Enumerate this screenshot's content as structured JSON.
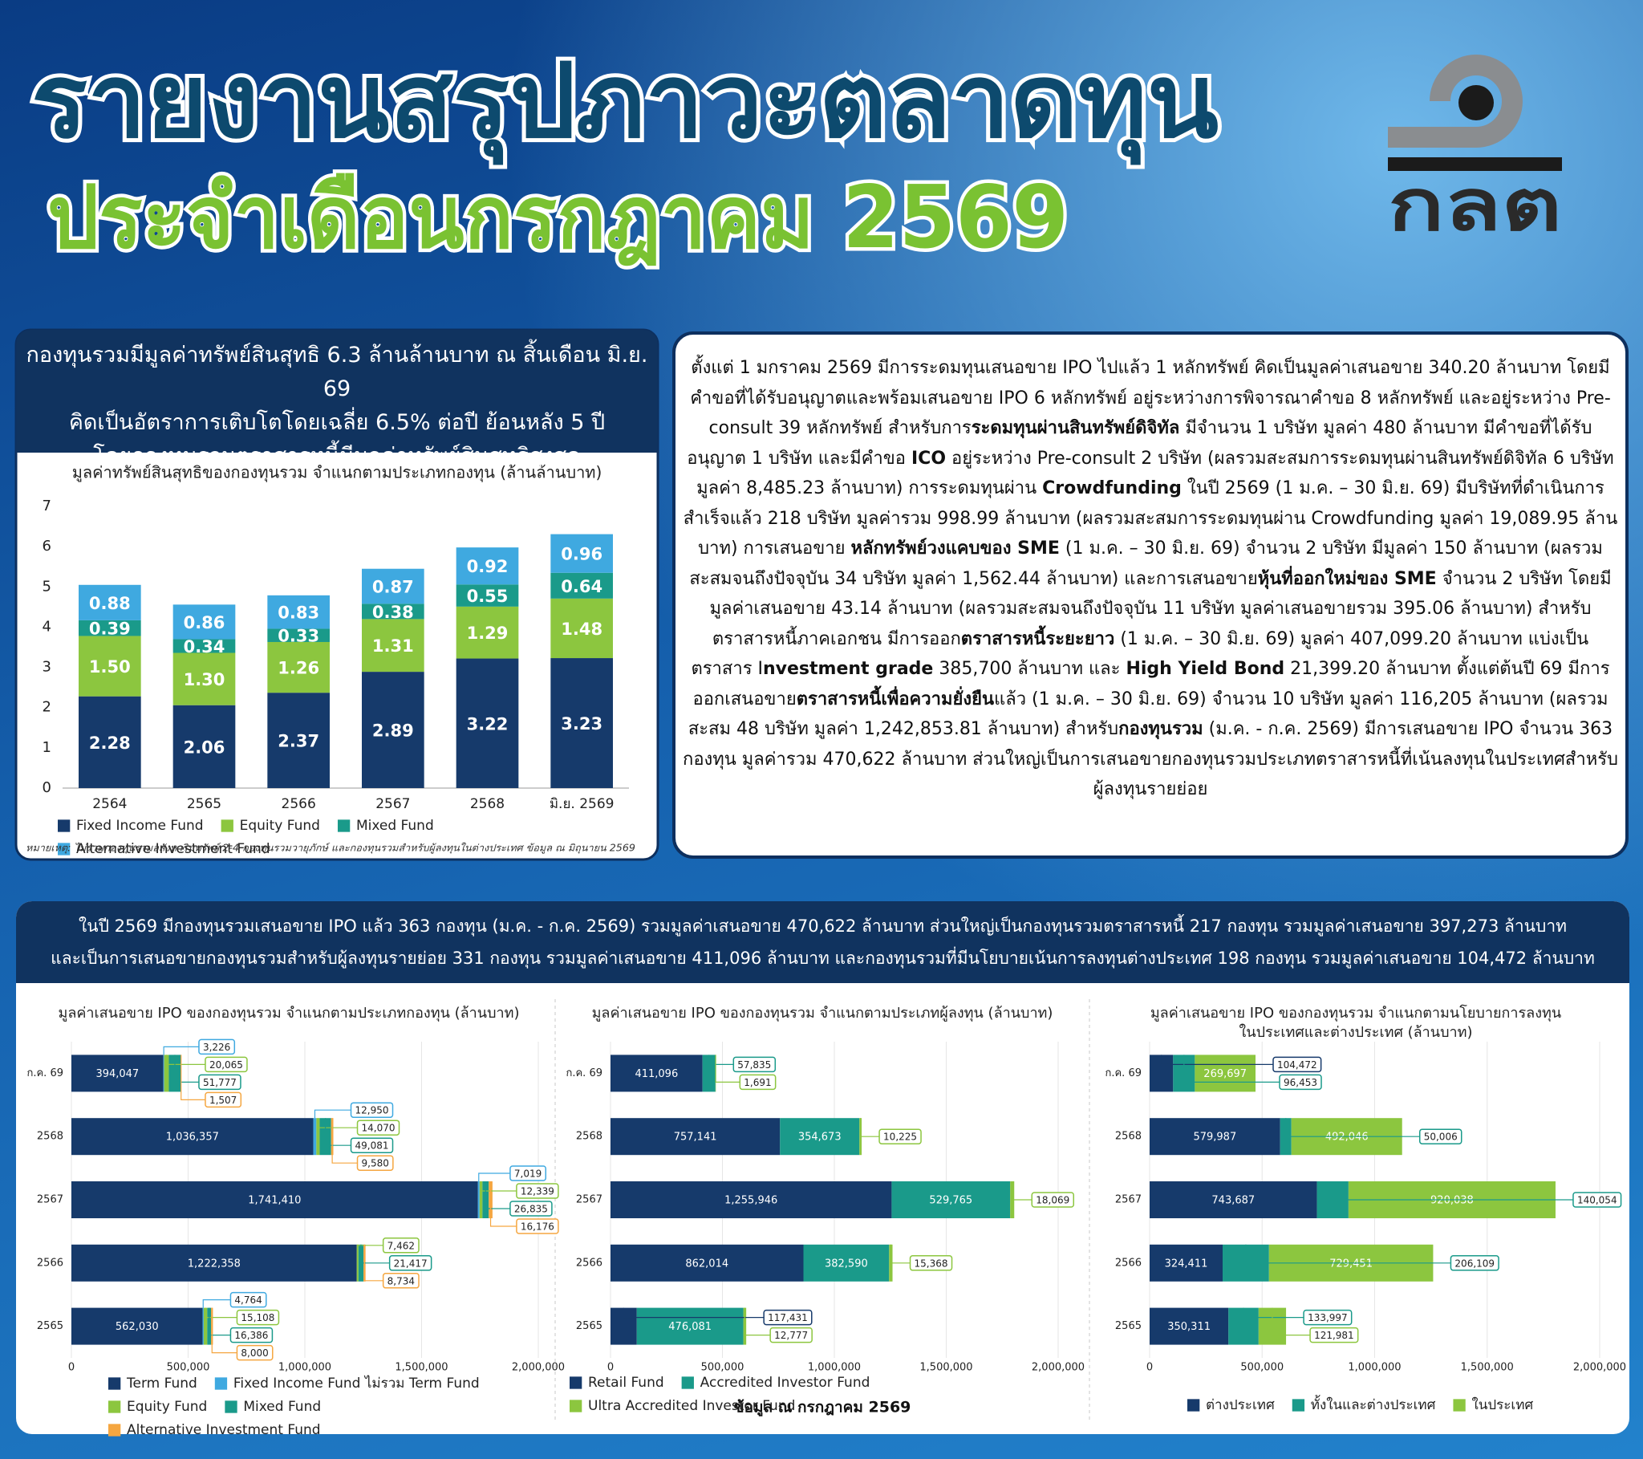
{
  "header": {
    "title": [
      "รายงานสรุปภาวะตลาดทุน",
      "ประจำเดือนกรกฎาคม 2569"
    ],
    "logo": "กลต"
  },
  "nav_panel": {
    "heading": [
      "กองทุนรวมมีมูลค่าทรัพย์สินสุทธิ 6.3 ล้านล้านบาท ณ สิ้นเดือน มิ.ย. 69",
      "คิดเป็นอัตราการเติบโตโดยเฉลี่ย 6.5% ต่อปี ย้อนหลัง 5 ปี",
      "โดยกองทุนรวมตราสารหนี้มีมูลค่าทรัพย์สินสุทธิสูงสุด"
    ]
  },
  "summary": {
    "paragraph": [
      "ตั้งแต่ 1 มกราคม 2569 มีการระดมทุนเสนอขาย IPO ไปแล้ว 1 หลักทรัพย์ คิดเป็นมูลค่าเสนอขาย 340.20 ล้านบาท โดยมีคำขอที่ได้รับอนุญาตและพร้อมเสนอขาย IPO 6 หลักทรัพย์ อยู่ระหว่างการพิจารณาคำขอ 8 หลักทรัพย์ และอยู่ระหว่าง Pre-consult 39 หลักทรัพย์ สำหรับการ",
      {
        "text": "ระดมทุนผ่านสินทรัพย์ดิจิทัล",
        "bold": true
      },
      " มีจำนวน 1 บริษัท มูลค่า 480 ล้านบาท  มีคำขอที่ได้รับอนุญาต 1 บริษัท  และมีคำขอ ",
      {
        "text": "ICO",
        "bold": true
      },
      " อยู่ระหว่าง Pre-consult 2 บริษัท (ผลรวมสะสมการระดมทุนผ่านสินทรัพย์ดิจิทัล 6 บริษัทมูลค่า 8,485.23 ล้านบาท) การระดมทุนผ่าน ",
      {
        "text": "Crowdfunding",
        "bold": true
      },
      " ในปี 2569 (1 ม.ค. – 30 มิ.ย. 69) มีบริษัทที่ดำเนินการสำเร็จแล้ว 218 บริษัท มูลค่ารวม 998.99 ล้านบาท (ผลรวมสะสมการระดมทุนผ่าน Crowdfunding มูลค่า 19,089.95 ล้านบาท) การเสนอขาย ",
      {
        "text": "หลักทรัพย์วงแคบของ SME",
        "bold": true
      },
      " (1 ม.ค. – 30 มิ.ย. 69) จำนวน 2 บริษัท มีมูลค่า 150 ล้านบาท (ผลรวมสะสมจนถึงปัจจุบัน 34 บริษัท มูลค่า 1,562.44 ล้านบาท) และการเสนอขาย",
      {
        "text": "หุ้นที่ออกใหม่ของ SME",
        "bold": true
      },
      " จำนวน 2 บริษัท โดยมีมูลค่าเสนอขาย 43.14 ล้านบาท (ผลรวมสะสมจนถึงปัจจุบัน 11 บริษัท มูลค่าเสนอขายรวม 395.06 ล้านบาท) สำหรับตราสารหนี้ภาคเอกชน มีการออก",
      {
        "text": "ตราสารหนี้ระยะยาว",
        "bold": true
      },
      " (1 ม.ค. – 30 มิ.ย. 69) มูลค่า 407,099.20 ล้านบาท แบ่งเป็นตราสาร I",
      {
        "text": "nvestment grade",
        "bold": true
      },
      " 385,700 ล้านบาท  และ ",
      {
        "text": "High Yield Bond",
        "bold": true
      },
      " 21,399.20 ล้านบาท ตั้งแต่ต้นปี 69  มีการออกเสนอขาย",
      {
        "text": "ตราสารหนี้เพื่อความยั่งยืน",
        "bold": true
      },
      "แล้ว (1 ม.ค. – 30 มิ.ย. 69) จำนวน 10 บริษัท มูลค่า 116,205 ล้านบาท (ผลรวมสะสม 48 บริษัท มูลค่า 1,242,853.81 ล้านบาท) สำหรับ",
      {
        "text": "กองทุนรวม",
        "bold": true
      },
      " (ม.ค. - ก.ค. 2569)  มีการเสนอขาย IPO จำนวน 363 กองทุน มูลค่ารวม 470,622 ล้านบาท ส่วนใหญ่เป็นการเสนอขายกองทุนรวมประเภทตราสารหนี้ที่เน้นลงทุนในประเทศสำหรับผู้ลงทุนรายย่อย"
    ]
  },
  "ipo_panel": {
    "heading": [
      "ในปี 2569 มีกองทุนรวมเสนอขาย IPO แล้ว 363 กองทุน (ม.ค. - ก.ค. 2569) รวมมูลค่าเสนอขาย 470,622 ล้านบาท ส่วนใหญ่เป็นกองทุนรวมตราสารหนี้ 217 กองทุน รวมมูลค่าเสนอขาย 397,273 ล้านบาท",
      "และเป็นการเสนอขายกองทุนรวมสำหรับผู้ลงทุนรายย่อย 331 กองทุน รวมมูลค่าเสนอขาย 411,096 ล้านบาท และกองทุนรวมที่มีนโยบายเน้นการลงทุนต่างประเทศ 198 กองทุน รวมมูลค่าเสนอขาย 104,472 ล้านบาท"
    ],
    "footnote": "ข้อมูล ณ กรกฎาคม 2569"
  },
  "chart_data": [
    {
      "type": "bar",
      "stacked": true,
      "grid": false,
      "title": "มูลค่าทรัพย์สินสุทธิของกองทุนรวม จำแนกตามประเภทกองทุน (ล้านล้านบาท)",
      "categories": [
        "2564",
        "2565",
        "2566",
        "2567",
        "2568",
        "มิ.ย. 2569"
      ],
      "series": [
        {
          "name": "Fixed Income Fund",
          "color": "#163a6b",
          "values": [
            2.28,
            2.06,
            2.37,
            2.89,
            3.22,
            3.23
          ]
        },
        {
          "name": "Equity Fund",
          "color": "#8cc63f",
          "values": [
            1.5,
            1.3,
            1.26,
            1.31,
            1.29,
            1.48
          ],
          "value_labels": [
            "1.50",
            "1.30",
            "1.26",
            "1.31",
            "1.29",
            "1.48"
          ]
        },
        {
          "name": "Mixed Fund",
          "color": "#1a9a8a",
          "values": [
            0.39,
            0.34,
            0.33,
            0.38,
            0.55,
            0.64
          ]
        },
        {
          "name": "Alternative Investment Fund",
          "color": "#3fa9e0",
          "values": [
            0.88,
            0.86,
            0.83,
            0.87,
            0.92,
            0.96
          ]
        }
      ],
      "ylim": [
        0,
        7
      ],
      "yticks": [
        0,
        1,
        2,
        3,
        4,
        5,
        6,
        7
      ],
      "note": "หมายเหตุ: ไม่รวมกองทุนรวมอสังหาริมทรัพย์ 2-4 กองทุนรวมวายุภักษ์ และกองทุนรวมสำหรับผู้ลงทุนในต่างประเทศ ข้อมูล ณ มิถุนายน 2569"
    },
    {
      "type": "bar",
      "orientation": "horizontal",
      "stacked": true,
      "grid": true,
      "title": "มูลค่าเสนอขาย IPO ของกองทุนรวม จำแนกตามประเภทกองทุน (ล้านบาท)",
      "categories": [
        "ก.ค. 69",
        "2568",
        "2567",
        "2566",
        "2565"
      ],
      "series": [
        {
          "name": "Term Fund",
          "color": "#163a6b",
          "values": [
            394047,
            1036357,
            1741410,
            1222358,
            562030
          ],
          "value_labels": [
            "394,047",
            "1,036,357",
            "1,741,410",
            "1,222,358",
            "562,030"
          ]
        },
        {
          "name": "Fixed Income Fund ไม่รวม Term Fund",
          "color": "#3fa9e0",
          "values": [
            3226,
            12950,
            7019,
            null,
            4764
          ],
          "value_labels": [
            "3,226",
            "12,950",
            "7,019",
            null,
            "4,764"
          ]
        },
        {
          "name": "Equity Fund",
          "color": "#8cc63f",
          "values": [
            20065,
            14070,
            12339,
            7462,
            15108
          ],
          "value_labels": [
            "20,065",
            "14,070",
            "12,339",
            "7,462",
            "15,108"
          ]
        },
        {
          "name": "Mixed Fund",
          "color": "#1a9a8a",
          "values": [
            51777,
            49081,
            26835,
            21417,
            16386
          ],
          "value_labels": [
            "51,777",
            "49,081",
            "26,835",
            "21,417",
            "16,386"
          ]
        },
        {
          "name": "Alternative Investment Fund",
          "color": "#f5a640",
          "values": [
            1507,
            9580,
            16176,
            8734,
            8000
          ],
          "value_labels": [
            "1,507",
            "9,580",
            "16,176",
            "8,734",
            "8,000"
          ]
        }
      ],
      "xlim": [
        0,
        2000000
      ],
      "xticks": [
        0,
        {
          "value": 500000,
          "label": "500,000"
        },
        {
          "value": 1000000,
          "label": "1,000,000"
        },
        {
          "value": 1500000,
          "label": "1,500,000"
        },
        {
          "value": 2000000,
          "label": "2,000,000"
        }
      ]
    },
    {
      "type": "bar",
      "orientation": "horizontal",
      "stacked": true,
      "grid": true,
      "title": "มูลค่าเสนอขาย IPO ของกองทุนรวม จำแนกตามประเภทผู้ลงทุน (ล้านบาท)",
      "categories": [
        "ก.ค. 69",
        "2568",
        "2567",
        "2566",
        "2565"
      ],
      "series": [
        {
          "name": "Retail Fund",
          "color": "#163a6b",
          "values": [
            411096,
            757141,
            1255946,
            862014,
            117431
          ],
          "value_labels": [
            "411,096",
            "757,141",
            "1,255,946",
            "862,014",
            "117,431"
          ]
        },
        {
          "name": "Accredited Investor Fund",
          "color": "#1a9a8a",
          "values": [
            57835,
            354673,
            529765,
            382590,
            476081
          ],
          "value_labels": [
            "57,835",
            "354,673",
            "529,765",
            "382,590",
            "476,081"
          ]
        },
        {
          "name": "Ultra Accredited Investor Fund",
          "color": "#8cc63f",
          "values": [
            1691,
            10225,
            18069,
            15368,
            12777
          ],
          "value_labels": [
            "1,691",
            "10,225",
            "18,069",
            "15,368",
            "12,777"
          ]
        }
      ],
      "xlim": [
        0,
        2000000
      ],
      "xticks": [
        0,
        {
          "value": 500000,
          "label": "500,000"
        },
        {
          "value": 1000000,
          "label": "1,000,000"
        },
        {
          "value": 1500000,
          "label": "1,500,000"
        },
        {
          "value": 2000000,
          "label": "2,000,000"
        }
      ]
    },
    {
      "type": "bar",
      "orientation": "horizontal",
      "stacked": true,
      "grid": true,
      "title": [
        "มูลค่าเสนอขาย IPO ของกองทุนรวม จำแนกตามนโยบายการลงทุน",
        "ในประเทศและต่างประเทศ (ล้านบาท)"
      ],
      "categories": [
        "ก.ค. 69",
        "2568",
        "2567",
        "2566",
        "2565"
      ],
      "series": [
        {
          "name": "ต่างประเทศ",
          "color": "#163a6b",
          "values": [
            104472,
            579987,
            743687,
            324411,
            350311
          ],
          "value_labels": [
            "104,472",
            "579,987",
            "743,687",
            "324,411",
            "350,311"
          ]
        },
        {
          "name": "ทั้งในและต่างประเทศ",
          "color": "#1a9a8a",
          "values": [
            96453,
            50006,
            140054,
            206109,
            133997
          ],
          "value_labels": [
            "96,453",
            "50,006",
            "140,054",
            "206,109",
            "133,997"
          ]
        },
        {
          "name": "ในประเทศ",
          "color": "#8cc63f",
          "values": [
            269697,
            492046,
            920038,
            729451,
            121981
          ],
          "value_labels": [
            "269,697",
            "492,046",
            "920,038",
            "729,451",
            "121,981"
          ]
        }
      ],
      "xlim": [
        0,
        2000000
      ],
      "xticks": [
        0,
        {
          "value": 500000,
          "label": "500,000"
        },
        {
          "value": 1000000,
          "label": "1,000,000"
        },
        {
          "value": 1500000,
          "label": "1,500,000"
        },
        {
          "value": 2000000,
          "label": "2,000,000"
        }
      ]
    }
  ]
}
